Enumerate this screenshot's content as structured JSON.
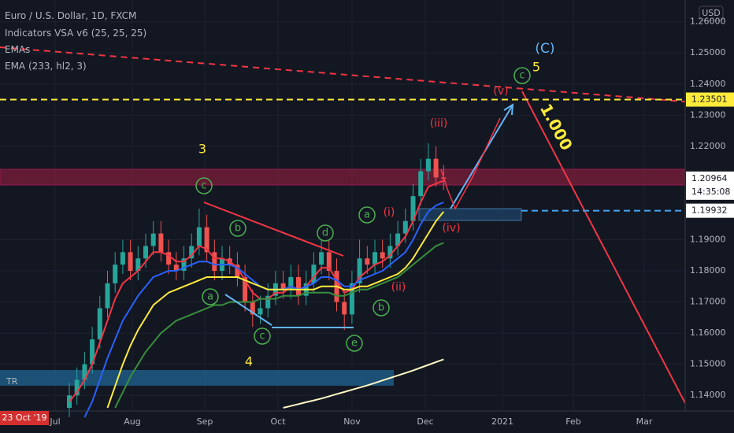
{
  "chart_data": {
    "type": "candlestick",
    "title": "Euro / U.S. Dollar, 1D, FXCM",
    "indicators": [
      "Indicators VSA v6 (25, 25, 25)",
      "EMAs",
      "EMA (233, hl2, 3)"
    ],
    "currency": "USD",
    "date_badge": "23 Oct '19",
    "up_color": "#26a69a",
    "down_color": "#ef5350",
    "open": [
      1.136,
      1.14,
      1.145,
      1.15,
      1.158,
      1.168,
      1.176,
      1.182,
      1.186,
      1.18,
      1.184,
      1.188,
      1.192,
      1.186,
      1.182,
      1.18,
      1.184,
      1.188,
      1.194,
      1.186,
      1.18,
      1.184,
      1.182,
      1.178,
      1.17,
      1.166,
      1.168,
      1.172,
      1.176,
      1.174,
      1.178,
      1.172,
      1.176,
      1.182,
      1.186,
      1.18,
      1.17,
      1.166,
      1.176,
      1.184,
      1.182,
      1.186,
      1.184,
      1.188,
      1.192,
      1.196,
      1.204,
      1.212,
      1.216,
      1.21
    ],
    "high": [
      1.144,
      1.149,
      1.154,
      1.162,
      1.172,
      1.18,
      1.186,
      1.19,
      1.19,
      1.188,
      1.192,
      1.196,
      1.196,
      1.19,
      1.186,
      1.188,
      1.192,
      1.2,
      1.198,
      1.19,
      1.188,
      1.188,
      1.186,
      1.182,
      1.174,
      1.172,
      1.176,
      1.18,
      1.18,
      1.182,
      1.182,
      1.18,
      1.186,
      1.19,
      1.19,
      1.184,
      1.174,
      1.18,
      1.19,
      1.188,
      1.19,
      1.19,
      1.192,
      1.196,
      1.2,
      1.208,
      1.216,
      1.221,
      1.22,
      1.214
    ],
    "low": [
      1.133,
      1.137,
      1.142,
      1.147,
      1.155,
      1.165,
      1.173,
      1.179,
      1.177,
      1.177,
      1.181,
      1.185,
      1.183,
      1.179,
      1.177,
      1.177,
      1.181,
      1.185,
      1.183,
      1.177,
      1.177,
      1.179,
      1.175,
      1.167,
      1.162,
      1.163,
      1.165,
      1.169,
      1.171,
      1.171,
      1.169,
      1.169,
      1.173,
      1.179,
      1.177,
      1.167,
      1.161,
      1.163,
      1.173,
      1.179,
      1.179,
      1.181,
      1.181,
      1.185,
      1.189,
      1.193,
      1.201,
      1.209,
      1.207,
      1.206
    ],
    "close": [
      1.14,
      1.145,
      1.15,
      1.158,
      1.168,
      1.176,
      1.182,
      1.186,
      1.18,
      1.184,
      1.188,
      1.192,
      1.186,
      1.182,
      1.18,
      1.184,
      1.188,
      1.194,
      1.186,
      1.18,
      1.184,
      1.182,
      1.178,
      1.17,
      1.166,
      1.168,
      1.172,
      1.176,
      1.174,
      1.178,
      1.172,
      1.176,
      1.182,
      1.186,
      1.18,
      1.17,
      1.166,
      1.176,
      1.184,
      1.182,
      1.186,
      1.184,
      1.188,
      1.192,
      1.196,
      1.204,
      1.212,
      1.216,
      1.21,
      1.2096
    ],
    "series": [
      {
        "color": "#f23645",
        "values": [
          1.138,
          1.141,
          1.145,
          1.15,
          1.157,
          1.164,
          1.171,
          1.176,
          1.178,
          1.18,
          1.183,
          1.186,
          1.186,
          1.185,
          1.183,
          1.183,
          1.185,
          1.188,
          1.187,
          1.184,
          1.184,
          1.183,
          1.181,
          1.177,
          1.173,
          1.171,
          1.171,
          1.173,
          1.173,
          1.175,
          1.174,
          1.175,
          1.178,
          1.181,
          1.181,
          1.177,
          1.173,
          1.174,
          1.178,
          1.18,
          1.182,
          1.183,
          1.185,
          1.188,
          1.191,
          1.196,
          1.202,
          1.207,
          1.208,
          1.209
        ]
      },
      {
        "color": "#2962ff",
        "values": [
          null,
          null,
          1.133,
          1.138,
          1.145,
          1.152,
          1.158,
          1.164,
          1.168,
          1.172,
          1.175,
          1.178,
          1.179,
          1.18,
          1.18,
          1.181,
          1.182,
          1.183,
          1.183,
          1.182,
          1.182,
          1.182,
          1.181,
          1.179,
          1.177,
          1.175,
          1.174,
          1.174,
          1.174,
          1.175,
          1.174,
          1.175,
          1.176,
          1.178,
          1.178,
          1.177,
          1.175,
          1.175,
          1.177,
          1.178,
          1.179,
          1.18,
          1.182,
          1.184,
          1.186,
          1.19,
          1.195,
          1.199,
          1.201,
          1.202
        ]
      },
      {
        "color": "#ffeb3b",
        "values": [
          null,
          null,
          null,
          null,
          null,
          1.136,
          1.143,
          1.15,
          1.156,
          1.161,
          1.165,
          1.169,
          1.171,
          1.173,
          1.174,
          1.175,
          1.176,
          1.177,
          1.178,
          1.178,
          1.178,
          1.178,
          1.178,
          1.177,
          1.176,
          1.175,
          1.174,
          1.174,
          1.174,
          1.174,
          1.174,
          1.174,
          1.174,
          1.175,
          1.175,
          1.175,
          1.174,
          1.174,
          1.175,
          1.175,
          1.176,
          1.177,
          1.178,
          1.179,
          1.181,
          1.184,
          1.188,
          1.192,
          1.196,
          1.199
        ]
      },
      {
        "color": "#388e3c",
        "values": [
          null,
          null,
          null,
          null,
          null,
          null,
          1.136,
          1.141,
          1.146,
          1.15,
          1.154,
          1.157,
          1.16,
          1.162,
          1.164,
          1.165,
          1.166,
          1.167,
          1.168,
          1.169,
          1.169,
          1.17,
          1.17,
          1.17,
          1.17,
          1.171,
          1.171,
          1.171,
          1.172,
          1.172,
          1.172,
          1.173,
          1.173,
          1.173,
          1.173,
          1.172,
          1.172,
          1.173,
          1.174,
          1.174,
          1.175,
          1.176,
          1.177,
          1.178,
          1.18,
          1.182,
          1.184,
          1.186,
          1.188,
          1.189
        ]
      },
      {
        "color": "#fff9c4",
        "values": [
          null,
          null,
          null,
          null,
          null,
          null,
          null,
          null,
          null,
          null,
          null,
          null,
          null,
          null,
          null,
          null,
          null,
          null,
          null,
          null,
          null,
          null,
          null,
          null,
          null,
          null,
          null,
          null,
          1.136,
          1.1366,
          1.1372,
          1.1378,
          1.1384,
          1.139,
          1.1397,
          1.1404,
          1.1411,
          1.1418,
          1.1425,
          1.1432,
          1.144,
          1.1448,
          1.1456,
          1.1464,
          1.1472,
          1.148,
          1.1489,
          1.1498,
          1.1507,
          1.1516
        ]
      }
    ],
    "ylim": [
      1.135,
      1.267
    ],
    "yticks": [
      {
        "value": 1.14,
        "label": "1.14000"
      },
      {
        "value": 1.15,
        "label": "1.15000"
      },
      {
        "value": 1.16,
        "label": "1.16000"
      },
      {
        "value": 1.17,
        "label": "1.17000"
      },
      {
        "value": 1.18,
        "label": "1.18000"
      },
      {
        "value": 1.19,
        "label": "1.19000"
      },
      {
        "value": 1.22,
        "label": "1.22000"
      },
      {
        "value": 1.23,
        "label": "1.23000"
      },
      {
        "value": 1.24,
        "label": "1.24000"
      },
      {
        "value": 1.25,
        "label": "1.25000"
      },
      {
        "value": 1.26,
        "label": "1.26000"
      }
    ],
    "xticks": [
      "Jul",
      "Aug",
      "Sep",
      "Oct",
      "Nov",
      "Dec",
      "2021",
      "Feb",
      "Mar"
    ],
    "grid": true,
    "price_lines": [
      {
        "value": 1.23501,
        "color": "#ffeb3b"
      },
      {
        "value": 1.19932,
        "color": "#42a5f5"
      }
    ],
    "last_price": 1.20964,
    "countdown": "14:35:08",
    "annotations": [
      "3",
      "4",
      "5",
      "(C)",
      "(i)",
      "(ii)",
      "(iii)",
      "(iv)",
      "(v)",
      "1.000",
      "TR"
    ],
    "wave_labels": [
      "c",
      "b",
      "a",
      "d",
      "c",
      "e",
      "a",
      "b",
      "c"
    ]
  }
}
